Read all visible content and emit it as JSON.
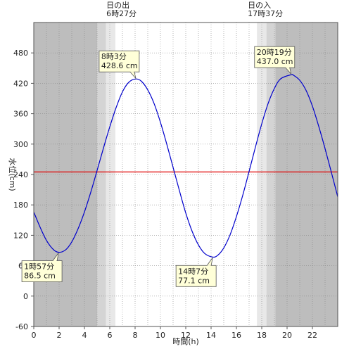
{
  "chart_data": {
    "type": "line",
    "xlabel": "時間(h)",
    "ylabel": "水位(cm)",
    "xlim": [
      0,
      24
    ],
    "ylim": [
      -60,
      540
    ],
    "x_ticks": [
      0,
      2,
      4,
      6,
      8,
      10,
      12,
      14,
      16,
      18,
      20,
      22
    ],
    "y_ticks": [
      -60,
      0,
      60,
      120,
      180,
      240,
      300,
      360,
      420,
      480
    ],
    "grid": true,
    "reference_line": {
      "y": 245,
      "color": "#e00000"
    },
    "series": [
      {
        "color": "#0000cc",
        "points": [
          [
            0,
            166
          ],
          [
            0.5,
            136
          ],
          [
            1,
            110
          ],
          [
            1.5,
            93
          ],
          [
            1.95,
            86.5
          ],
          [
            2.5,
            91
          ],
          [
            3,
            107
          ],
          [
            3.5,
            133
          ],
          [
            4,
            166
          ],
          [
            4.5,
            205
          ],
          [
            5,
            248
          ],
          [
            5.5,
            292
          ],
          [
            6,
            334
          ],
          [
            6.5,
            372
          ],
          [
            7,
            403
          ],
          [
            7.5,
            422
          ],
          [
            8.05,
            428.6
          ],
          [
            8.5,
            424
          ],
          [
            9,
            407
          ],
          [
            9.5,
            380
          ],
          [
            10,
            343
          ],
          [
            10.5,
            300
          ],
          [
            11,
            254
          ],
          [
            11.5,
            208
          ],
          [
            12,
            164
          ],
          [
            12.5,
            128
          ],
          [
            13,
            101
          ],
          [
            13.5,
            84
          ],
          [
            14.12,
            77.1
          ],
          [
            14.5,
            80
          ],
          [
            15,
            95
          ],
          [
            15.5,
            121
          ],
          [
            16,
            157
          ],
          [
            16.5,
            199
          ],
          [
            17,
            246
          ],
          [
            17.5,
            294
          ],
          [
            18,
            340
          ],
          [
            18.5,
            380
          ],
          [
            19,
            410
          ],
          [
            19.5,
            429
          ],
          [
            20.32,
            437.0
          ],
          [
            20.5,
            436
          ],
          [
            21,
            426
          ],
          [
            21.5,
            406
          ],
          [
            22,
            375
          ],
          [
            22.5,
            335
          ],
          [
            23,
            291
          ],
          [
            23.5,
            244
          ],
          [
            24,
            196
          ]
        ]
      }
    ],
    "sunrise": {
      "label": "日の出",
      "time": "6時27分",
      "hour": 6.45
    },
    "sunset": {
      "label": "日の入",
      "time": "17時37分",
      "hour": 17.62
    },
    "annotations": [
      {
        "time": "1時57分",
        "value": "86.5 cm",
        "x": 1.95,
        "y": 86.5
      },
      {
        "time": "8時3分",
        "value": "428.6 cm",
        "x": 8.05,
        "y": 428.6
      },
      {
        "time": "14時7分",
        "value": "77.1 cm",
        "x": 14.12,
        "y": 77.1
      },
      {
        "time": "20時19分",
        "value": "437.0 cm",
        "x": 20.32,
        "y": 437.0
      }
    ],
    "colors": {
      "night": "#bdbdbd",
      "twilight_outer": "#d4d4d4",
      "twilight_inner": "#e8e8e8",
      "day": "#ffffff",
      "grid": "#888888",
      "callout_bg": "#ffffd8"
    }
  }
}
